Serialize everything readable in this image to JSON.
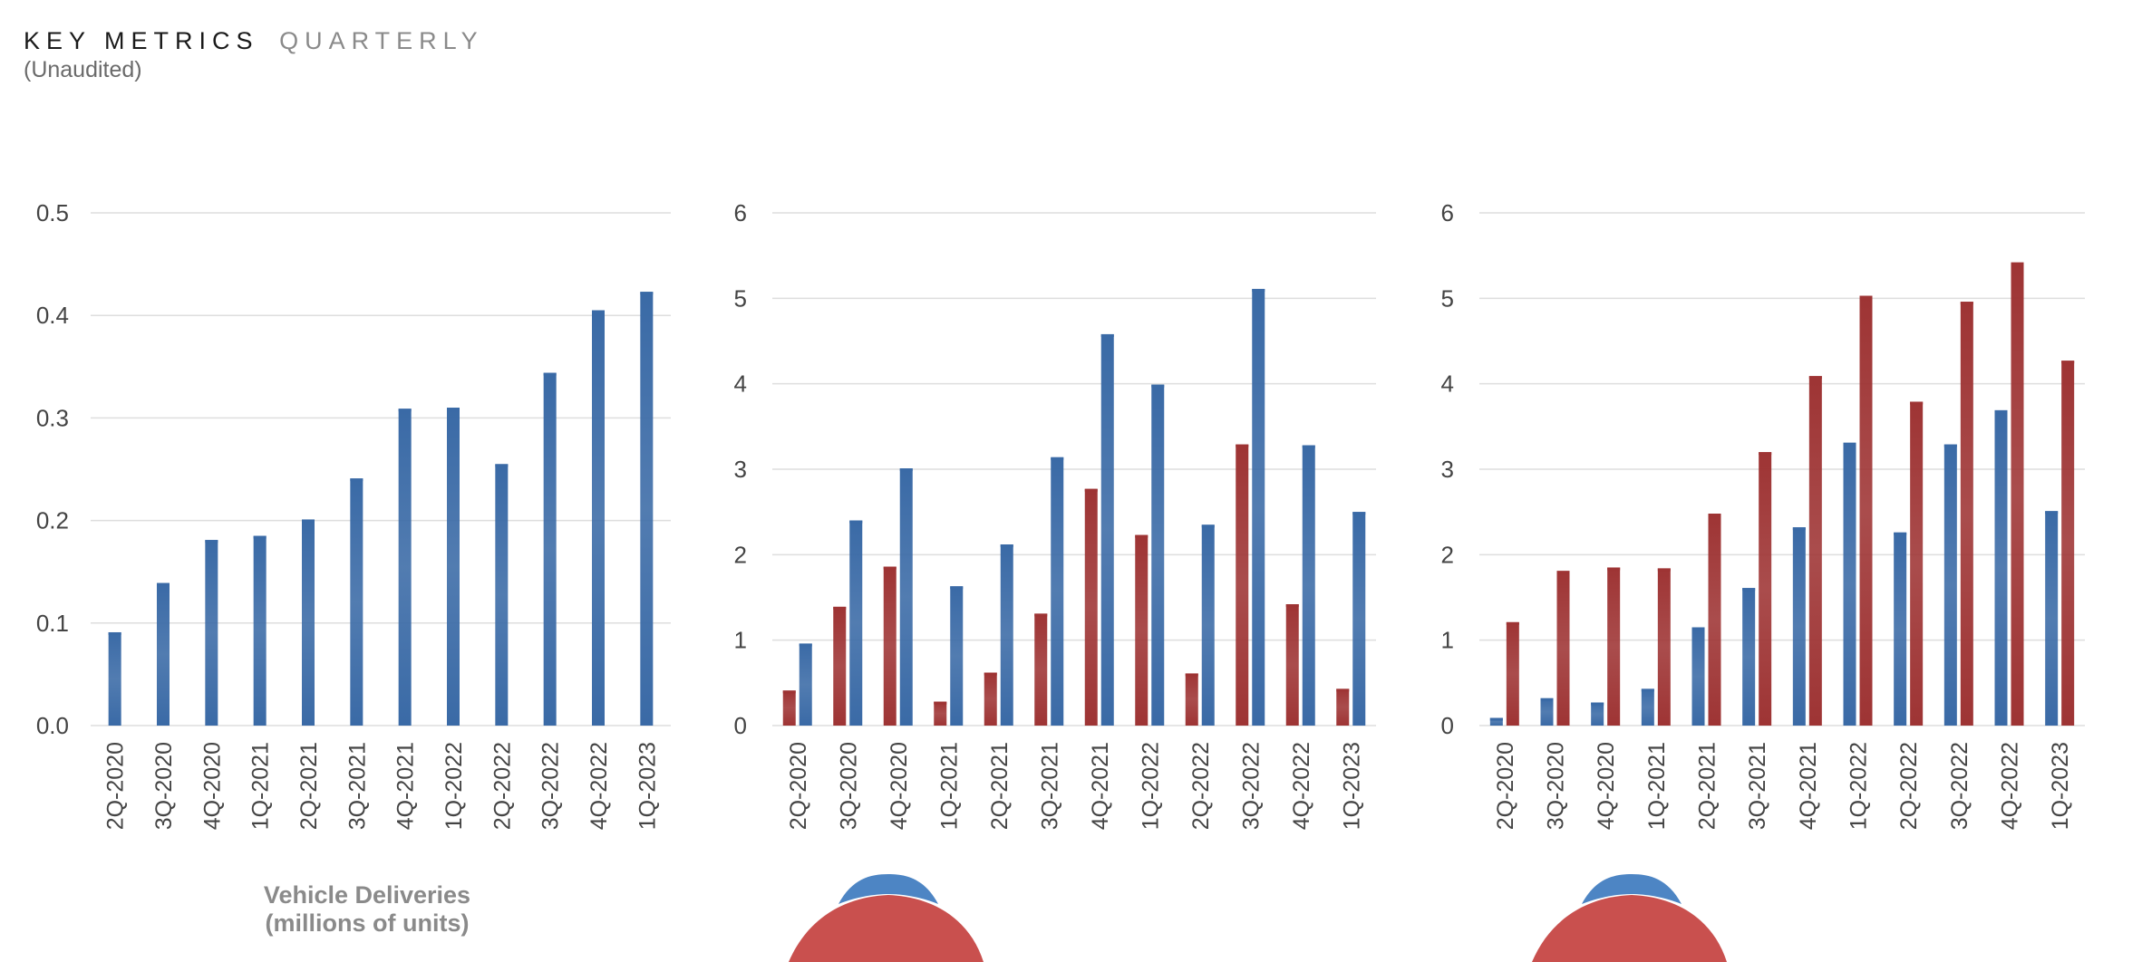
{
  "header": {
    "title_main": "KEY METRICS",
    "title_secondary": "QUARTERLY",
    "subtitle": "(Unaudited)"
  },
  "colors": {
    "blue": "#3a6aa6",
    "red": "#9e3434",
    "grid": "#dedede"
  },
  "chart_data": [
    {
      "type": "bar",
      "categories": [
        "2Q-2020",
        "3Q-2020",
        "4Q-2020",
        "1Q-2021",
        "2Q-2021",
        "3Q-2021",
        "4Q-2021",
        "1Q-2022",
        "2Q-2022",
        "3Q-2022",
        "4Q-2022",
        "1Q-2023"
      ],
      "series": [
        {
          "color": "#3a6aa6",
          "values": [
            0.091,
            0.139,
            0.181,
            0.185,
            0.201,
            0.241,
            0.309,
            0.31,
            0.255,
            0.344,
            0.405,
            0.423
          ]
        }
      ],
      "ylim": [
        0,
        0.5
      ],
      "yticks": [
        "0.0",
        "0.1",
        "0.2",
        "0.3",
        "0.4",
        "0.5"
      ],
      "title": "Vehicle Deliveries",
      "subtitle": "(millions of units)",
      "grid": true
    },
    {
      "type": "bar",
      "categories": [
        "2Q-2020",
        "3Q-2020",
        "4Q-2020",
        "1Q-2021",
        "2Q-2021",
        "3Q-2021",
        "4Q-2021",
        "1Q-2022",
        "2Q-2022",
        "3Q-2022",
        "4Q-2022",
        "1Q-2023"
      ],
      "series": [
        {
          "color": "#9e3434",
          "values": [
            0.41,
            1.39,
            1.86,
            0.28,
            0.62,
            1.31,
            2.77,
            2.23,
            0.61,
            3.29,
            1.42,
            0.43
          ]
        },
        {
          "color": "#3a6aa6",
          "values": [
            0.96,
            2.4,
            3.01,
            1.63,
            2.12,
            3.14,
            4.58,
            3.99,
            2.35,
            5.11,
            3.28,
            2.5
          ]
        }
      ],
      "ylim": [
        0,
        6
      ],
      "yticks": [
        "0",
        "1",
        "2",
        "3",
        "4",
        "5",
        "6"
      ],
      "title": "",
      "grid": true
    },
    {
      "type": "bar",
      "categories": [
        "2Q-2020",
        "3Q-2020",
        "4Q-2020",
        "1Q-2021",
        "2Q-2021",
        "3Q-2021",
        "4Q-2021",
        "1Q-2022",
        "2Q-2022",
        "3Q-2022",
        "4Q-2022",
        "1Q-2023"
      ],
      "series": [
        {
          "color": "#3a6aa6",
          "values": [
            0.09,
            0.32,
            0.27,
            0.43,
            1.15,
            1.61,
            2.32,
            3.31,
            2.26,
            3.29,
            3.69,
            2.51
          ]
        },
        {
          "color": "#9e3434",
          "values": [
            1.21,
            1.81,
            1.85,
            1.84,
            2.48,
            3.2,
            4.09,
            5.03,
            3.79,
            4.96,
            5.42,
            4.27
          ]
        }
      ],
      "ylim": [
        0,
        6
      ],
      "yticks": [
        "0",
        "1",
        "2",
        "3",
        "4",
        "5",
        "6"
      ],
      "title": "",
      "grid": true
    }
  ]
}
